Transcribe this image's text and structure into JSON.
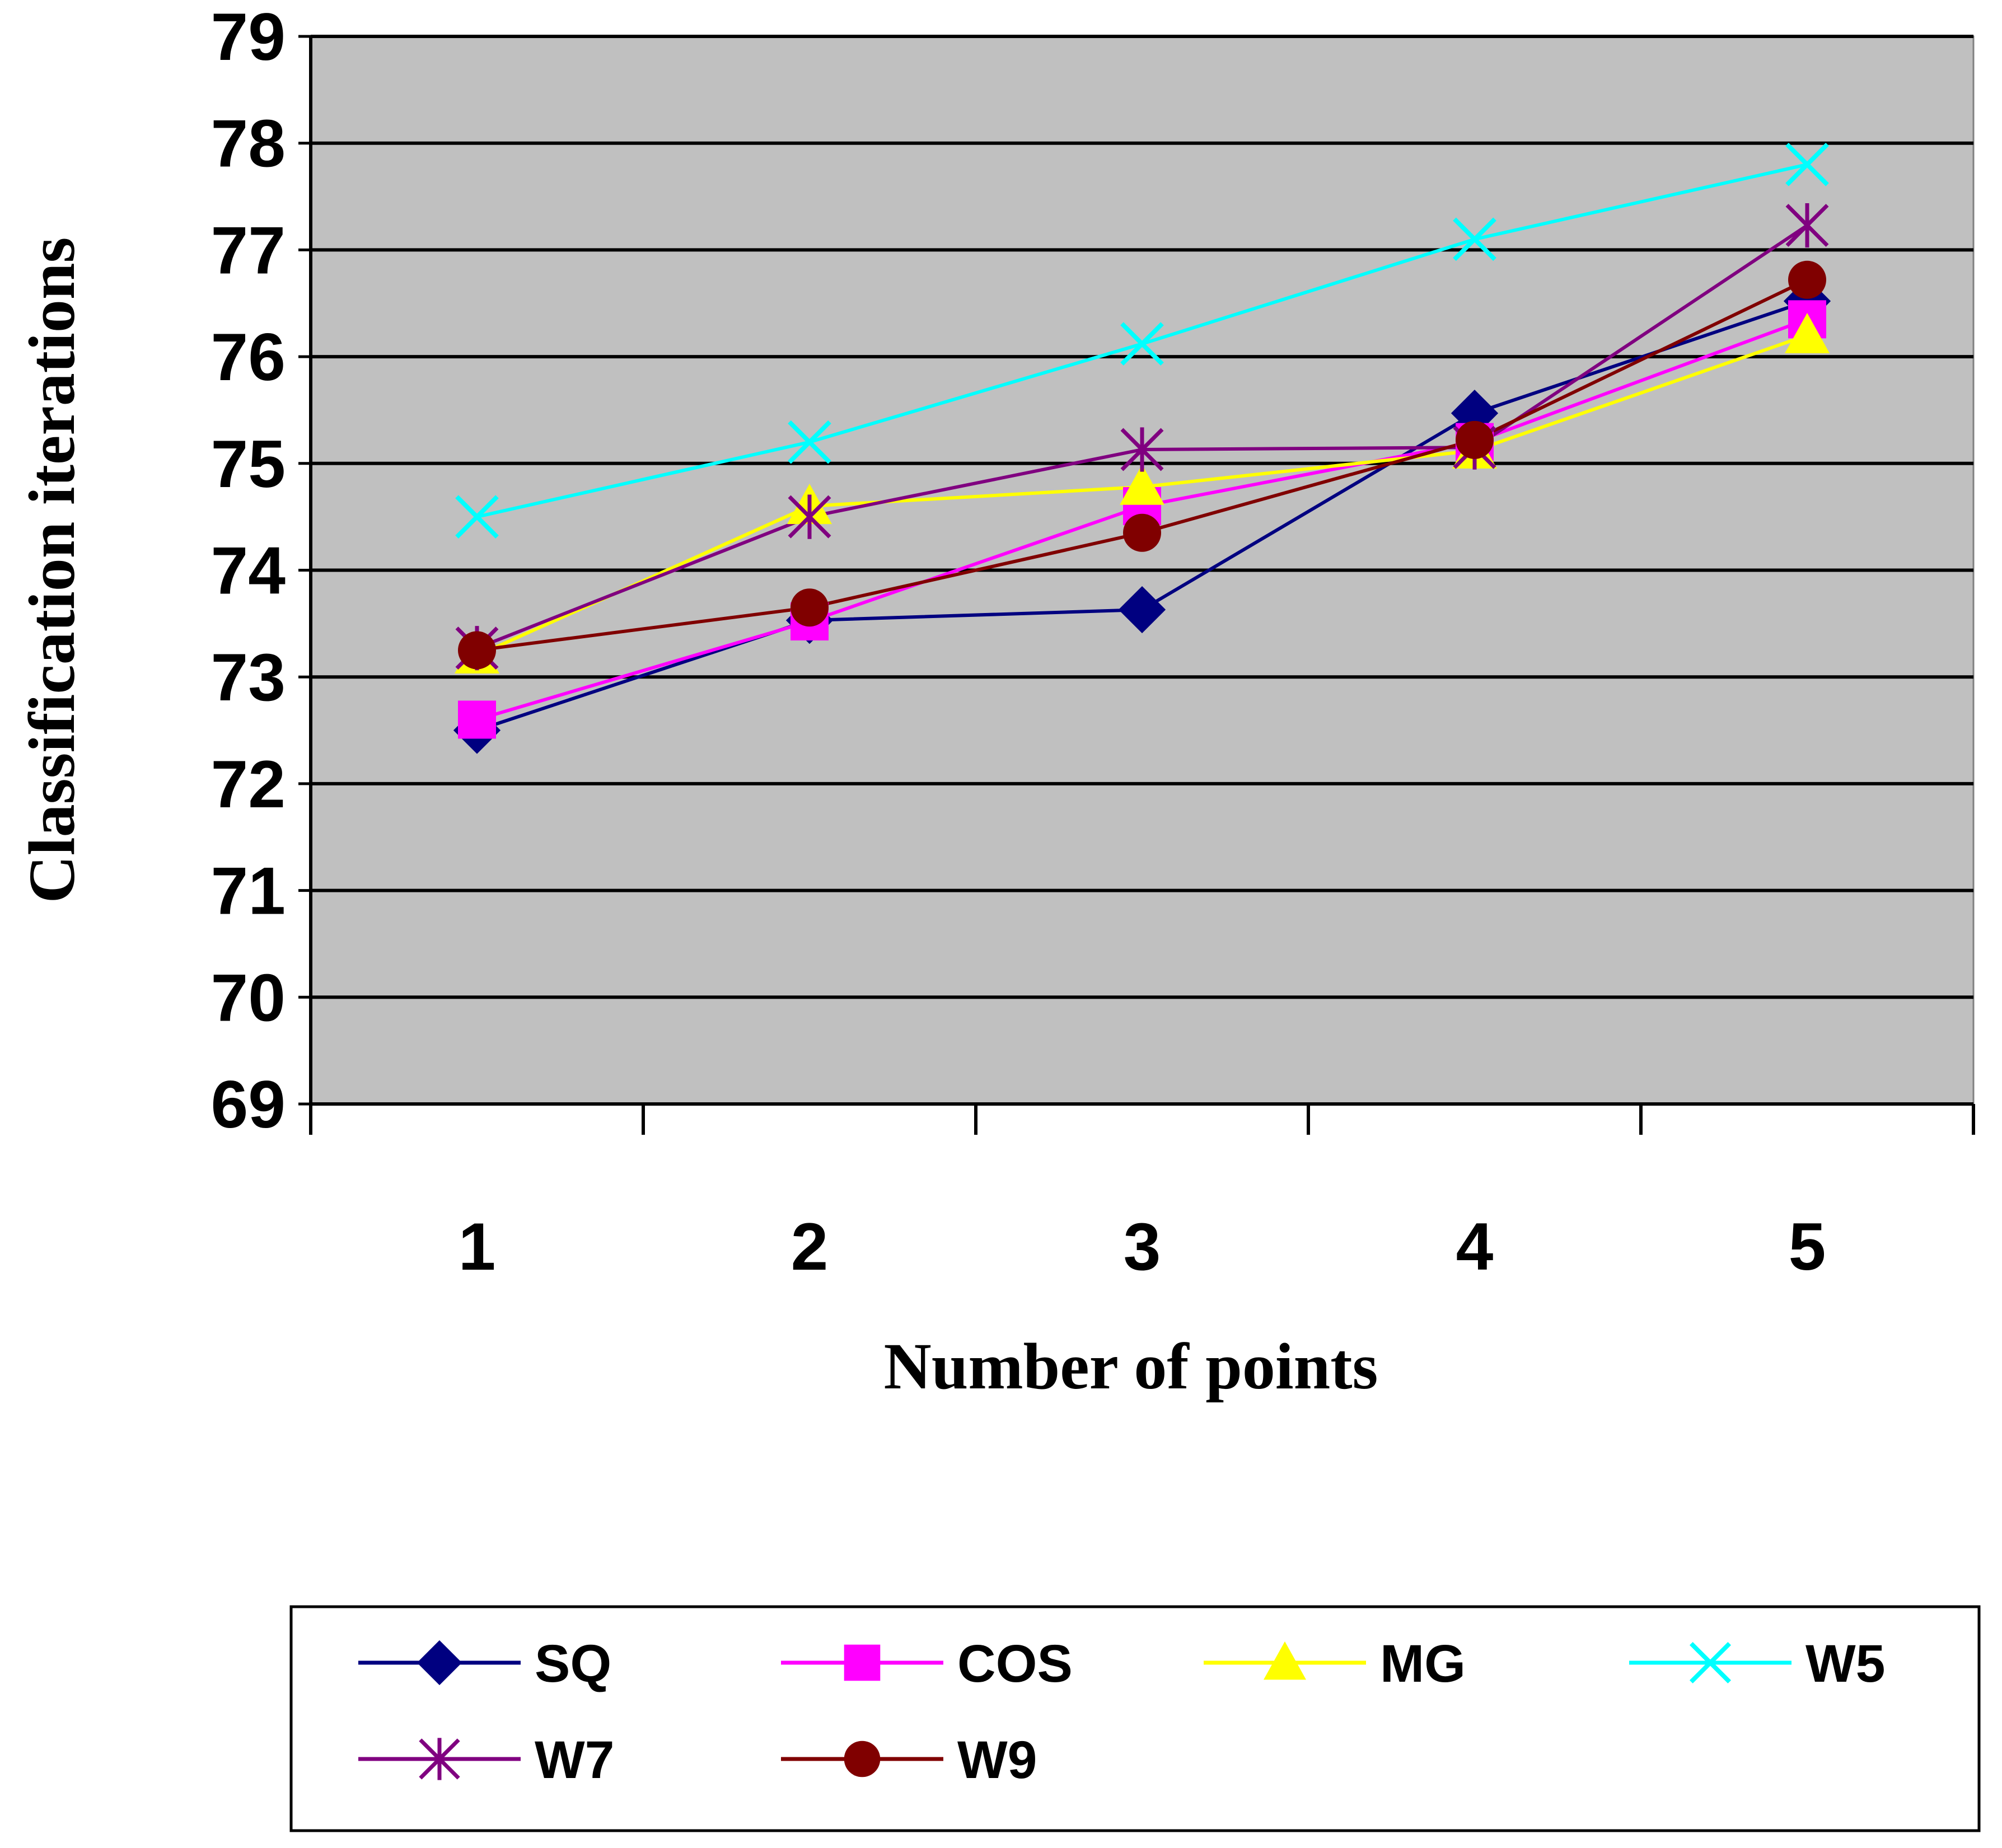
{
  "chart_data": {
    "type": "line",
    "title": "",
    "xlabel": "Number of points",
    "ylabel": "Classification iterations",
    "categories": [
      "1",
      "2",
      "3",
      "4",
      "5"
    ],
    "ylim": [
      69,
      79
    ],
    "y_ticks": [
      "69",
      "70",
      "71",
      "72",
      "73",
      "74",
      "75",
      "76",
      "77",
      "78",
      "79"
    ],
    "grid": true,
    "legend_position": "bottom",
    "plot_background": "#c0c0c0",
    "series": [
      {
        "name": "SQ",
        "color": "#000080",
        "marker": "diamond",
        "values": [
          72.5,
          73.53,
          73.63,
          75.47,
          76.52
        ]
      },
      {
        "name": "COS",
        "color": "#ff00ff",
        "marker": "square",
        "values": [
          72.6,
          73.52,
          74.6,
          75.2,
          76.35
        ]
      },
      {
        "name": "MG",
        "color": "#ffff00",
        "marker": "triangle",
        "values": [
          73.2,
          74.6,
          74.78,
          75.12,
          76.2
        ]
      },
      {
        "name": "W5",
        "color": "#00ffff",
        "marker": "x",
        "values": [
          74.5,
          75.2,
          76.12,
          77.1,
          77.8
        ]
      },
      {
        "name": "W7",
        "color": "#800080",
        "marker": "star",
        "values": [
          73.27,
          74.5,
          75.13,
          75.15,
          77.23
        ]
      },
      {
        "name": "W9",
        "color": "#800000",
        "marker": "circle",
        "values": [
          73.25,
          73.65,
          74.35,
          75.22,
          76.72
        ]
      }
    ]
  }
}
